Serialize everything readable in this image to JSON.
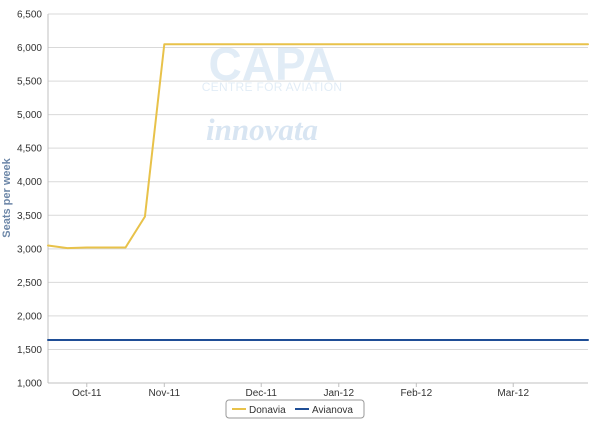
{
  "chart_data": {
    "type": "line",
    "title": "",
    "xlabel": "",
    "ylabel": "Seats per week",
    "ylim": [
      1000,
      6500
    ],
    "yticks": [
      1000,
      1500,
      2000,
      2500,
      3000,
      3500,
      4000,
      4500,
      5000,
      5500,
      6000,
      6500
    ],
    "ytick_labels": [
      "1,000",
      "1,500",
      "2,000",
      "2,500",
      "3,000",
      "3,500",
      "4,000",
      "4,500",
      "5,000",
      "5,500",
      "6,000",
      "6,500"
    ],
    "xlim": [
      "2011-09-26",
      "2012-04-08"
    ],
    "x_ticks": [
      {
        "date": "2011-10-10",
        "label": "Oct-11"
      },
      {
        "date": "2011-11-07",
        "label": "Nov-11"
      },
      {
        "date": "2011-12-12",
        "label": "Dec-11"
      },
      {
        "date": "2012-01-09",
        "label": "Jan-12"
      },
      {
        "date": "2012-02-06",
        "label": "Feb-12"
      },
      {
        "date": "2012-03-12",
        "label": "Mar-12"
      }
    ],
    "grid": true,
    "legend_placement": "bottom-center",
    "series": [
      {
        "name": "Donavia",
        "color": "#E8C24A",
        "points": [
          {
            "x": "2011-09-26",
            "y": 3050
          },
          {
            "x": "2011-10-03",
            "y": 3010
          },
          {
            "x": "2011-10-10",
            "y": 3020
          },
          {
            "x": "2011-10-17",
            "y": 3020
          },
          {
            "x": "2011-10-24",
            "y": 3020
          },
          {
            "x": "2011-10-31",
            "y": 3480
          },
          {
            "x": "2011-11-07",
            "y": 6050
          },
          {
            "x": "2012-04-08",
            "y": 6050
          }
        ]
      },
      {
        "name": "Avianova",
        "color": "#1F4E96",
        "points": [
          {
            "x": "2011-09-26",
            "y": 1640
          },
          {
            "x": "2012-04-08",
            "y": 1640
          }
        ]
      }
    ]
  },
  "watermarks": {
    "capa_main": "CAPA",
    "capa_sub": "CENTRE FOR AVIATION",
    "innovata": "innovata"
  }
}
